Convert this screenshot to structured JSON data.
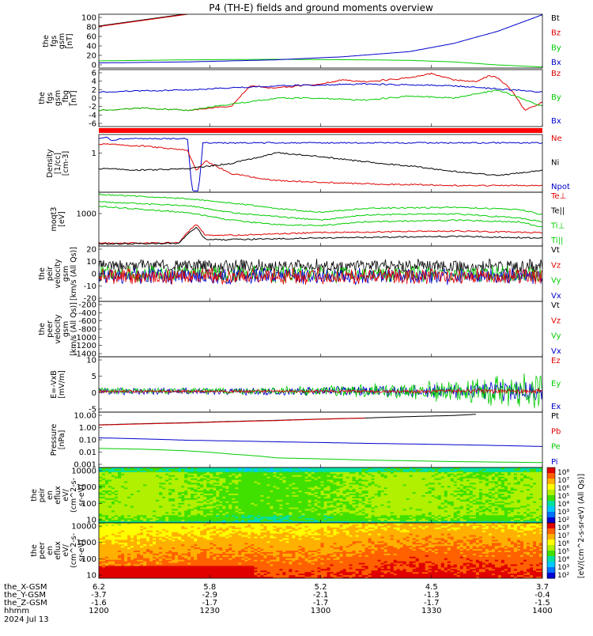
{
  "title": "P4 (TH-E) fields and ground moments overview",
  "colors": {
    "black": "#000000",
    "red": "#e00000",
    "green": "#00cc00",
    "blue": "#0000cc"
  },
  "x_ticks": [
    "1200",
    "1230",
    "1300",
    "1330",
    "1400"
  ],
  "footer": {
    "rows": [
      {
        "label": "the_X-GSM",
        "values": [
          "6.2",
          "5.8",
          "5.2",
          "4.5",
          "3.7"
        ]
      },
      {
        "label": "the_Y-GSM",
        "values": [
          "-3.7",
          "-2.9",
          "-2.1",
          "-1.3",
          "-0.4"
        ]
      },
      {
        "label": "the_Z-GSM",
        "values": [
          "-1.6",
          "-1.7",
          "-1.7",
          "-1.7",
          "-1.5"
        ]
      },
      {
        "label": "hhmm",
        "values": [
          "1200",
          "1230",
          "1300",
          "1330",
          "1400"
        ]
      }
    ],
    "date": "2024 Jul 13"
  },
  "chart_data": [
    {
      "type": "line",
      "ylabel": [
        "the",
        "fgs",
        "gsm",
        "[nT]"
      ],
      "ylim": [
        0,
        105
      ],
      "y_ticks": [
        "100",
        "80",
        "60",
        "40",
        "20",
        "0"
      ],
      "legend": [
        {
          "name": "Bt",
          "color": "#000000"
        },
        {
          "name": "Bz",
          "color": "#e00000"
        },
        {
          "name": "By",
          "color": "#00cc00"
        },
        {
          "name": "Bx",
          "color": "#0000cc"
        }
      ],
      "series": [
        {
          "name": "Bt",
          "x": [
            0,
            0.05,
            0.1,
            0.15,
            0.2
          ],
          "y": [
            82,
            88,
            94,
            100,
            106
          ]
        },
        {
          "name": "Bz",
          "x": [
            0,
            0.05,
            0.1,
            0.15,
            0.2
          ],
          "y": [
            81,
            87,
            93,
            99,
            105
          ]
        },
        {
          "name": "By",
          "x": [
            0,
            0.2,
            0.4,
            0.6,
            0.7,
            0.8,
            0.9,
            1
          ],
          "y": [
            14,
            16,
            17,
            16,
            15,
            12,
            6,
            2
          ]
        },
        {
          "name": "Bx",
          "x": [
            0,
            0.2,
            0.4,
            0.55,
            0.7,
            0.8,
            0.9,
            1
          ],
          "y": [
            10,
            12,
            16,
            22,
            32,
            48,
            72,
            104
          ]
        }
      ]
    },
    {
      "type": "line",
      "ylabel": [
        "the",
        "fgs",
        "gsm",
        "_fbg",
        "[nT]"
      ],
      "ylim": [
        -7,
        7
      ],
      "y_ticks": [
        "6",
        "4",
        "2",
        "0",
        "-2",
        "-4",
        "-6"
      ],
      "legend": [
        {
          "name": "Bz",
          "color": "#e00000"
        },
        {
          "name": "By",
          "color": "#00cc00"
        },
        {
          "name": "Bx",
          "color": "#0000cc"
        }
      ],
      "series": [
        {
          "name": "Bz",
          "x": [
            0,
            0.1,
            0.2,
            0.3,
            0.34,
            0.4,
            0.5,
            0.55,
            0.6,
            0.7,
            0.75,
            0.8,
            0.85,
            0.88,
            0.9,
            0.93,
            0.96,
            1
          ],
          "y": [
            -3,
            -2.5,
            -3,
            -2,
            3,
            2.5,
            3.5,
            4.5,
            4,
            5,
            6,
            4.5,
            4,
            5.5,
            5,
            2,
            -3,
            -1
          ]
        },
        {
          "name": "By",
          "x": [
            0,
            0.1,
            0.2,
            0.3,
            0.4,
            0.5,
            0.6,
            0.7,
            0.8,
            0.9,
            0.95,
            1
          ],
          "y": [
            -3,
            -2.5,
            -3,
            -1.5,
            0,
            0,
            -0.5,
            0.5,
            0,
            2,
            0,
            -2
          ]
        },
        {
          "name": "Bx",
          "x": [
            0,
            0.2,
            0.4,
            0.6,
            0.8,
            1
          ],
          "y": [
            1.5,
            2,
            3,
            3.5,
            3,
            1.5
          ]
        }
      ]
    },
    {
      "type": "line",
      "ylabel": [
        "Density",
        "[1/cc]",
        "[cm-3]"
      ],
      "ylim": [
        0.4,
        1.5
      ],
      "y_ticks": [
        "1"
      ],
      "legend": [
        {
          "name": "Ne",
          "color": "#e00000"
        },
        {
          "name": "Ni",
          "color": "#000000"
        },
        {
          "name": "Npot",
          "color": "#0000cc"
        }
      ],
      "series": [
        {
          "name": "Npot",
          "x": [
            0,
            0.02,
            0.03,
            0.05,
            0.1,
            0.2,
            0.21,
            0.225,
            0.235,
            0.24,
            0.3,
            0.5,
            0.7,
            1
          ],
          "y": [
            1.42,
            1.45,
            1.38,
            1.42,
            1.42,
            1.42,
            0.43,
            0.43,
            1.38,
            1.34,
            1.34,
            1.34,
            1.34,
            1.34
          ]
        },
        {
          "name": "Ne",
          "x": [
            0,
            0.1,
            0.2,
            0.22,
            0.24,
            0.3,
            0.4,
            0.6,
            0.8,
            1
          ],
          "y": [
            1.32,
            1.28,
            1.2,
            0.8,
            1.0,
            0.75,
            0.62,
            0.56,
            0.53,
            0.53
          ]
        },
        {
          "name": "Ni",
          "x": [
            0,
            0.1,
            0.2,
            0.3,
            0.4,
            0.5,
            0.6,
            0.7,
            0.8,
            0.9,
            1
          ],
          "y": [
            0.85,
            0.82,
            0.85,
            0.95,
            1.15,
            1.08,
            0.98,
            0.9,
            0.8,
            0.72,
            0.82
          ]
        }
      ]
    },
    {
      "type": "line",
      "ylabel": [
        "moqt3",
        "[eV]"
      ],
      "ylim": [
        0,
        1
      ],
      "y_ticks": [
        "1000"
      ],
      "legend": [
        {
          "name": "Te⊥",
          "color": "#e00000"
        },
        {
          "name": "Te||",
          "color": "#000000"
        },
        {
          "name": "Ti⊥",
          "color": "#00cc00"
        },
        {
          "name": "Ti||",
          "color": "#00cc00"
        }
      ],
      "series": [
        {
          "name": "Ti⊥ (upper)",
          "x": [
            0,
            0.2,
            0.3,
            0.4,
            0.5,
            0.6,
            0.8,
            0.95,
            1
          ],
          "y": [
            0.96,
            0.88,
            0.8,
            0.7,
            0.63,
            0.7,
            0.72,
            0.68,
            0.58
          ]
        },
        {
          "name": "Ti⊥",
          "x": [
            0,
            0.2,
            0.3,
            0.4,
            0.5,
            0.6,
            0.8,
            0.95,
            1
          ],
          "y": [
            0.82,
            0.75,
            0.62,
            0.55,
            0.48,
            0.58,
            0.6,
            0.52,
            0.45
          ]
        },
        {
          "name": "Ti||",
          "x": [
            0,
            0.2,
            0.3,
            0.4,
            0.5,
            0.6,
            0.8,
            0.95,
            1
          ],
          "y": [
            0.74,
            0.62,
            0.48,
            0.4,
            0.38,
            0.45,
            0.48,
            0.45,
            0.35
          ]
        },
        {
          "name": "Te⊥",
          "x": [
            0,
            0.18,
            0.2,
            0.22,
            0.24,
            0.3,
            0.5,
            0.8,
            1
          ],
          "y": [
            0.05,
            0.06,
            0.26,
            0.4,
            0.2,
            0.2,
            0.25,
            0.28,
            0.25
          ]
        },
        {
          "name": "Te||",
          "x": [
            0,
            0.18,
            0.2,
            0.22,
            0.24,
            0.3,
            0.5,
            0.8,
            1
          ],
          "y": [
            0.04,
            0.05,
            0.22,
            0.35,
            0.12,
            0.12,
            0.15,
            0.18,
            0.15
          ]
        }
      ]
    },
    {
      "type": "line",
      "ylabel": [
        "the",
        "peir",
        "velocity",
        "gsm",
        "[km/s (All Qs)]"
      ],
      "ylim": [
        -25,
        30
      ],
      "y_ticks": [
        "20",
        "10",
        "0",
        "-10",
        "-20"
      ],
      "legend": [
        {
          "name": "Vt",
          "color": "#000000"
        },
        {
          "name": "Vz",
          "color": "#e00000"
        },
        {
          "name": "Vy",
          "color": "#00cc00"
        },
        {
          "name": "Vx",
          "color": "#0000cc"
        }
      ],
      "series": [
        {
          "name": "Vt",
          "center": 10,
          "amp": 8,
          "seed": 3
        },
        {
          "name": "Vy",
          "center": 2,
          "amp": 9,
          "seed": 7
        },
        {
          "name": "Vx",
          "center": 0,
          "amp": 9,
          "seed": 11
        },
        {
          "name": "Vz",
          "center": 0,
          "amp": 9,
          "seed": 19
        }
      ]
    },
    {
      "type": "line",
      "ylabel": [
        "the",
        "peer",
        "velocity",
        "gsm",
        "[km/s (All Qs)]"
      ],
      "ylim": [
        -1450,
        -150
      ],
      "y_ticks": [
        "-200",
        "-400",
        "-600",
        "-800",
        "-1000",
        "-1200",
        "-1400"
      ],
      "legend": [
        {
          "name": "Vt",
          "color": "#000000"
        },
        {
          "name": "Vz",
          "color": "#e00000"
        },
        {
          "name": "Vy",
          "color": "#00cc00"
        },
        {
          "name": "Vx",
          "color": "#0000cc"
        }
      ],
      "series": []
    },
    {
      "type": "line",
      "ylabel": [
        "E=-VxB",
        "[mV/m]"
      ],
      "ylim": [
        -6,
        10
      ],
      "y_ticks": [
        "10",
        "5",
        "0",
        "-5"
      ],
      "legend": [
        {
          "name": "Ez",
          "color": "#e00000"
        },
        {
          "name": "Ey",
          "color": "#00cc00"
        },
        {
          "name": "Ex",
          "color": "#0000cc"
        }
      ],
      "series": [
        {
          "name": "Ex",
          "center": 0,
          "amp": 1.2,
          "grow": 2.5,
          "seed": 23
        },
        {
          "name": "Ey",
          "center": 0.2,
          "amp": 1.0,
          "grow": 5.5,
          "seed": 29
        },
        {
          "name": "Ez",
          "center": 0,
          "amp": 0.4,
          "grow": 0.5,
          "seed": 31
        }
      ]
    },
    {
      "type": "line",
      "ylabel": [
        "Pressure",
        "[nPa]"
      ],
      "ylim": [
        0.001,
        30
      ],
      "y_ticks": [
        "10.00",
        "1.00",
        "0.10",
        "0.01",
        "0.001"
      ],
      "legend": [
        {
          "name": "Pt",
          "color": "#000000"
        },
        {
          "name": "Pb",
          "color": "#e00000"
        },
        {
          "name": "Pe",
          "color": "#00cc00"
        },
        {
          "name": "Pi",
          "color": "#0000cc"
        }
      ],
      "series": [
        {
          "name": "Pt",
          "x": [
            0,
            0.2,
            0.4,
            0.6,
            0.8,
            0.85
          ],
          "y": [
            2.8,
            4.2,
            6.5,
            10,
            16,
            20
          ]
        },
        {
          "name": "Pb",
          "x": [
            0,
            0.2,
            0.4,
            0.6
          ],
          "y": [
            2.7,
            4.0,
            6.2,
            9.8
          ]
        },
        {
          "name": "Pi",
          "x": [
            0,
            0.2,
            0.4,
            0.6,
            0.8,
            1
          ],
          "y": [
            0.25,
            0.16,
            0.12,
            0.09,
            0.07,
            0.05
          ]
        },
        {
          "name": "Pe",
          "x": [
            0,
            0.1,
            0.2,
            0.3,
            0.4,
            0.6,
            0.8,
            1
          ],
          "y": [
            0.035,
            0.03,
            0.022,
            0.012,
            0.006,
            0.004,
            0.003,
            0.0025
          ]
        }
      ]
    },
    {
      "type": "heatmap",
      "ylabel": [
        "the",
        "peir",
        "en",
        "eflux",
        "eV/",
        "(cm^2-s-",
        "sr-eV)"
      ],
      "ylim": [
        8,
        20000
      ],
      "y_ticks": [
        "10000",
        "1000",
        "100",
        "10"
      ],
      "colorbar_labels": [
        "10⁸",
        "10⁷",
        "10⁶",
        "10⁵",
        "10⁴",
        "10³",
        "10²"
      ],
      "colorbar_title": "[eV/(cm^2-s-sr-eV) (All Qs)]",
      "profile": [
        0.58,
        0.6,
        0.56,
        0.5,
        0.52,
        0.55,
        0.6,
        0.58,
        0.55,
        0.6
      ]
    },
    {
      "type": "heatmap",
      "ylabel": [
        "the",
        "peer",
        "en",
        "eflux",
        "eV/",
        "(cm^2-s-",
        "sr-eV)"
      ],
      "ylim": [
        8,
        20000
      ],
      "y_ticks": [
        "10000",
        "1000",
        "100",
        "10"
      ],
      "colorbar_labels": [
        "10⁸",
        "10⁷",
        "10⁶",
        "10⁵",
        "10⁴",
        "10³",
        "10²"
      ],
      "colorbar_title": "[eV/(cm^2-s-sr-eV) (All Qs)]",
      "profile": [
        0.8,
        0.82,
        0.84,
        0.84,
        0.83,
        0.85,
        0.88,
        0.88,
        0.87,
        0.86
      ]
    }
  ]
}
